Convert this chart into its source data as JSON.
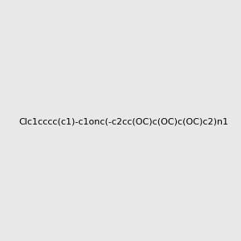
{
  "smiles": "Clc1cccc(c1)-c1onc(-c2cc(OC)c(OC)c(OC)c2)n1",
  "image_size": 300,
  "background_color": "#e8e8e8",
  "bond_color": "#1a1a1a",
  "atom_colors": {
    "N": "#0000ff",
    "O": "#ff0000",
    "Cl": "#1a8a1a"
  }
}
